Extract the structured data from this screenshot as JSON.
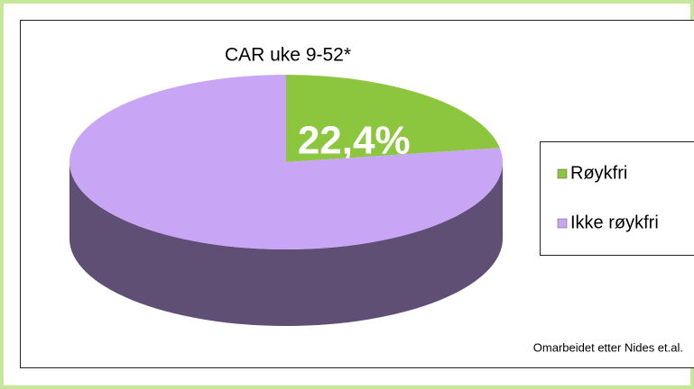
{
  "chart_data": {
    "type": "pie",
    "title": "CAR uke 9-52*",
    "categories": [
      "Røykfri",
      "Ikke røykfri"
    ],
    "values": [
      22.4,
      77.6
    ],
    "value_labels": [
      "22,4%",
      null
    ],
    "colors": [
      "#8cc63f",
      "#c9a6f5"
    ],
    "legend": "right",
    "annotation": "Omarbeidet etter Nides et.al."
  }
}
